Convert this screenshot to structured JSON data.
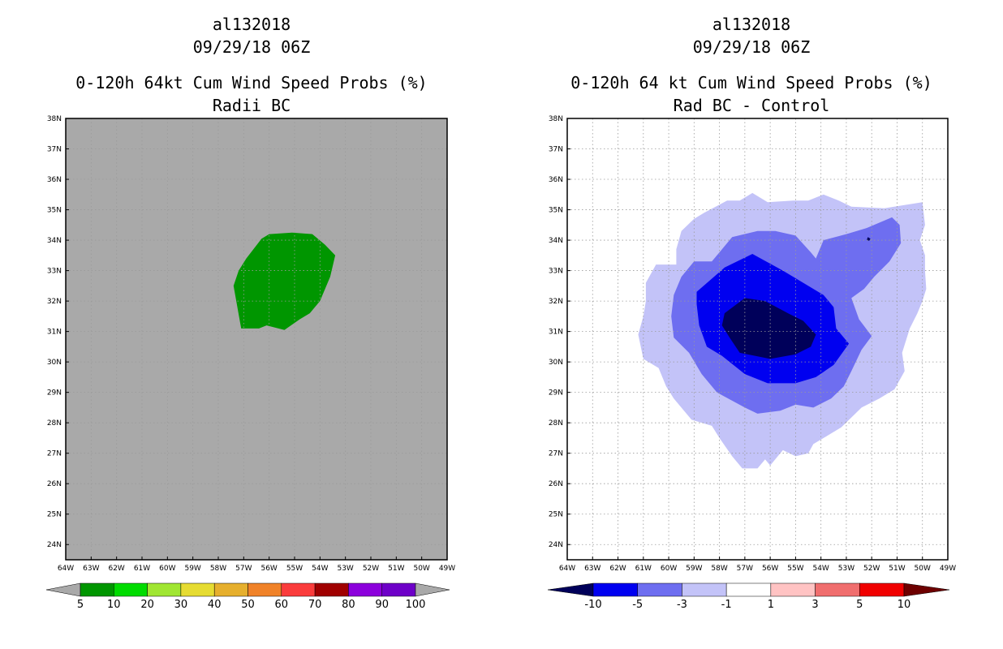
{
  "panels": [
    {
      "storm_id": "al132018",
      "datetime": "09/29/18 06Z",
      "title": "0-120h 64kt Cum Wind Speed Probs (%)",
      "subtitle": "Radii BC"
    },
    {
      "storm_id": "al132018",
      "datetime": "09/29/18 06Z",
      "title": "0-120h 64 kt Cum Wind Speed Probs (%)",
      "subtitle": "Rad BC - Control"
    }
  ],
  "chart_data": [
    {
      "type": "heatmap",
      "title": "0-120h 64kt Cum Wind Speed Probs (%)",
      "subtitle": "Radii BC",
      "xlim": [
        -64,
        -49
      ],
      "ylim": [
        23.5,
        38
      ],
      "x_ticks": [
        "64W",
        "63W",
        "62W",
        "61W",
        "60W",
        "59W",
        "58W",
        "57W",
        "56W",
        "55W",
        "54W",
        "53W",
        "52W",
        "51W",
        "50W",
        "49W"
      ],
      "y_ticks": [
        "24N",
        "25N",
        "26N",
        "27N",
        "28N",
        "29N",
        "30N",
        "31N",
        "32N",
        "33N",
        "34N",
        "35N",
        "36N",
        "37N",
        "38N"
      ],
      "background_color": "#a9a9a9",
      "colorbar": {
        "labels": [
          "5",
          "10",
          "20",
          "30",
          "40",
          "50",
          "60",
          "70",
          "80",
          "90",
          "100"
        ],
        "colors": [
          "#009600",
          "#00dc00",
          "#a0e632",
          "#e6dc32",
          "#e6af2d",
          "#f08228",
          "#fa3c3c",
          "#a00000",
          "#8c00dc",
          "#6e00c8"
        ]
      },
      "contours": [
        {
          "level": "10-20",
          "color": "#009600",
          "points": [
            [
              -56.9,
              33.4
            ],
            [
              -56.3,
              34.05
            ],
            [
              -56,
              34.2
            ],
            [
              -55.1,
              34.25
            ],
            [
              -54.3,
              34.2
            ],
            [
              -53.8,
              33.85
            ],
            [
              -53.4,
              33.5
            ],
            [
              -53.6,
              32.8
            ],
            [
              -54,
              32
            ],
            [
              -54.4,
              31.6
            ],
            [
              -54.8,
              31.4
            ],
            [
              -55.4,
              31.05
            ],
            [
              -56.1,
              31.2
            ],
            [
              -56.4,
              31.1
            ],
            [
              -57.1,
              31.1
            ],
            [
              -57.4,
              32.5
            ],
            [
              -57.2,
              33
            ]
          ]
        }
      ]
    },
    {
      "type": "heatmap",
      "title": "0-120h 64 kt Cum Wind Speed Probs (%)",
      "subtitle": "Rad BC - Control",
      "xlim": [
        -64,
        -49
      ],
      "ylim": [
        23.5,
        38
      ],
      "x_ticks": [
        "64W",
        "63W",
        "62W",
        "61W",
        "60W",
        "59W",
        "58W",
        "57W",
        "56W",
        "55W",
        "54W",
        "53W",
        "52W",
        "51W",
        "50W",
        "49W"
      ],
      "y_ticks": [
        "24N",
        "25N",
        "26N",
        "27N",
        "28N",
        "29N",
        "30N",
        "31N",
        "32N",
        "33N",
        "34N",
        "35N",
        "36N",
        "37N",
        "38N"
      ],
      "grid": true,
      "colorbar": {
        "labels": [
          "-10",
          "-5",
          "-3",
          "-1",
          "1",
          "3",
          "5",
          "10"
        ],
        "colors": [
          "#00005a",
          "#0000f0",
          "#6e6ef0",
          "#c3c3f8",
          "#ffffff",
          "#ffc3c3",
          "#f06e6e",
          "#f00000",
          "#6e0000"
        ]
      },
      "contours": [
        {
          "level": "-3 to -1",
          "color": "#c3c3f8",
          "points": [
            [
              -58.6,
              34.9
            ],
            [
              -57.7,
              35.3
            ],
            [
              -57.2,
              35.3
            ],
            [
              -56.7,
              35.55
            ],
            [
              -56.1,
              35.25
            ],
            [
              -55.1,
              35.3
            ],
            [
              -54.5,
              35.3
            ],
            [
              -53.9,
              35.5
            ],
            [
              -53.3,
              35.3
            ],
            [
              -52.8,
              35.1
            ],
            [
              -51.5,
              35.05
            ],
            [
              -50,
              35.25
            ],
            [
              -49.9,
              34.5
            ],
            [
              -50.1,
              34
            ],
            [
              -49.9,
              33.5
            ],
            [
              -49.9,
              33
            ],
            [
              -49.85,
              32.4
            ],
            [
              -50,
              32
            ],
            [
              -50.2,
              31.6
            ],
            [
              -50.5,
              31.1
            ],
            [
              -50.8,
              30.3
            ],
            [
              -50.7,
              29.7
            ],
            [
              -51.1,
              29.1
            ],
            [
              -51.7,
              28.8
            ],
            [
              -52.4,
              28.5
            ],
            [
              -53.2,
              27.85
            ],
            [
              -54.3,
              27.3
            ],
            [
              -54.5,
              27
            ],
            [
              -55,
              26.9
            ],
            [
              -55.5,
              27.1
            ],
            [
              -55.7,
              26.9
            ],
            [
              -56,
              26.6
            ],
            [
              -56.2,
              26.8
            ],
            [
              -56.5,
              26.5
            ],
            [
              -57.1,
              26.5
            ],
            [
              -57.5,
              26.9
            ],
            [
              -58,
              27.5
            ],
            [
              -58.3,
              27.9
            ],
            [
              -59.1,
              28.1
            ],
            [
              -59.8,
              28.8
            ],
            [
              -60.1,
              29.2
            ],
            [
              -60.4,
              29.8
            ],
            [
              -61.0,
              30.1
            ],
            [
              -61.2,
              30.9
            ],
            [
              -61.0,
              31.5
            ],
            [
              -60.9,
              32
            ],
            [
              -60.9,
              32.6
            ],
            [
              -60.5,
              33.2
            ],
            [
              -59.7,
              33.2
            ],
            [
              -59.7,
              33.7
            ],
            [
              -59.5,
              34.3
            ],
            [
              -59,
              34.7
            ]
          ]
        },
        {
          "level": "-5 to -3",
          "color": "#6e6ef0",
          "points": [
            [
              -58.3,
              33.3
            ],
            [
              -57.5,
              34.1
            ],
            [
              -56.5,
              34.3
            ],
            [
              -55.8,
              34.3
            ],
            [
              -55,
              34.15
            ],
            [
              -54.4,
              33.6
            ],
            [
              -54.2,
              33.4
            ],
            [
              -53.9,
              34
            ],
            [
              -53,
              34.2
            ],
            [
              -52.2,
              34.4
            ],
            [
              -51.2,
              34.75
            ],
            [
              -50.9,
              34.5
            ],
            [
              -50.85,
              33.9
            ],
            [
              -51.3,
              33.3
            ],
            [
              -51.9,
              32.8
            ],
            [
              -52.3,
              32.4
            ],
            [
              -52.8,
              32.1
            ],
            [
              -52.5,
              31.4
            ],
            [
              -52.0,
              30.85
            ],
            [
              -52.4,
              30.4
            ],
            [
              -52.8,
              29.7
            ],
            [
              -53.1,
              29.2
            ],
            [
              -53.6,
              28.8
            ],
            [
              -54.3,
              28.5
            ],
            [
              -55,
              28.6
            ],
            [
              -55.6,
              28.4
            ],
            [
              -56.5,
              28.3
            ],
            [
              -57,
              28.5
            ],
            [
              -58.1,
              29.0
            ],
            [
              -58.7,
              29.6
            ],
            [
              -59.2,
              30.3
            ],
            [
              -59.8,
              30.8
            ],
            [
              -59.9,
              31.5
            ],
            [
              -59.8,
              32.2
            ],
            [
              -59.5,
              32.8
            ],
            [
              -59.0,
              33.3
            ]
          ]
        },
        {
          "level": "-10 to -5",
          "color": "#0000f0",
          "points": [
            [
              -58.9,
              32.3
            ],
            [
              -57.8,
              33.1
            ],
            [
              -56.7,
              33.55
            ],
            [
              -55.5,
              33.0
            ],
            [
              -54.8,
              32.65
            ],
            [
              -53.9,
              32.2
            ],
            [
              -53.5,
              31.8
            ],
            [
              -53.4,
              31.1
            ],
            [
              -52.9,
              30.6
            ],
            [
              -53.5,
              29.9
            ],
            [
              -54.2,
              29.5
            ],
            [
              -55.0,
              29.3
            ],
            [
              -56.1,
              29.3
            ],
            [
              -57.0,
              29.6
            ],
            [
              -57.9,
              30.2
            ],
            [
              -58.5,
              30.5
            ],
            [
              -58.8,
              31.2
            ],
            [
              -58.9,
              31.9
            ]
          ]
        },
        {
          "level": "< -10",
          "color": "#00005a",
          "points": [
            [
              -57.8,
              31.6
            ],
            [
              -57.0,
              32.1
            ],
            [
              -56.2,
              32.0
            ],
            [
              -55.3,
              31.6
            ],
            [
              -54.7,
              31.35
            ],
            [
              -54.2,
              30.9
            ],
            [
              -54.4,
              30.5
            ],
            [
              -55.0,
              30.25
            ],
            [
              -56.0,
              30.1
            ],
            [
              -57.2,
              30.3
            ],
            [
              -57.6,
              30.8
            ],
            [
              -57.9,
              31.2
            ]
          ]
        },
        {
          "level": "< -10 (dot)",
          "color": "#00005a",
          "points": [
            [
              -52.15,
              34.1
            ],
            [
              -52.05,
              34.05
            ],
            [
              -52.1,
              33.98
            ],
            [
              -52.2,
              34.0
            ]
          ]
        }
      ]
    }
  ]
}
